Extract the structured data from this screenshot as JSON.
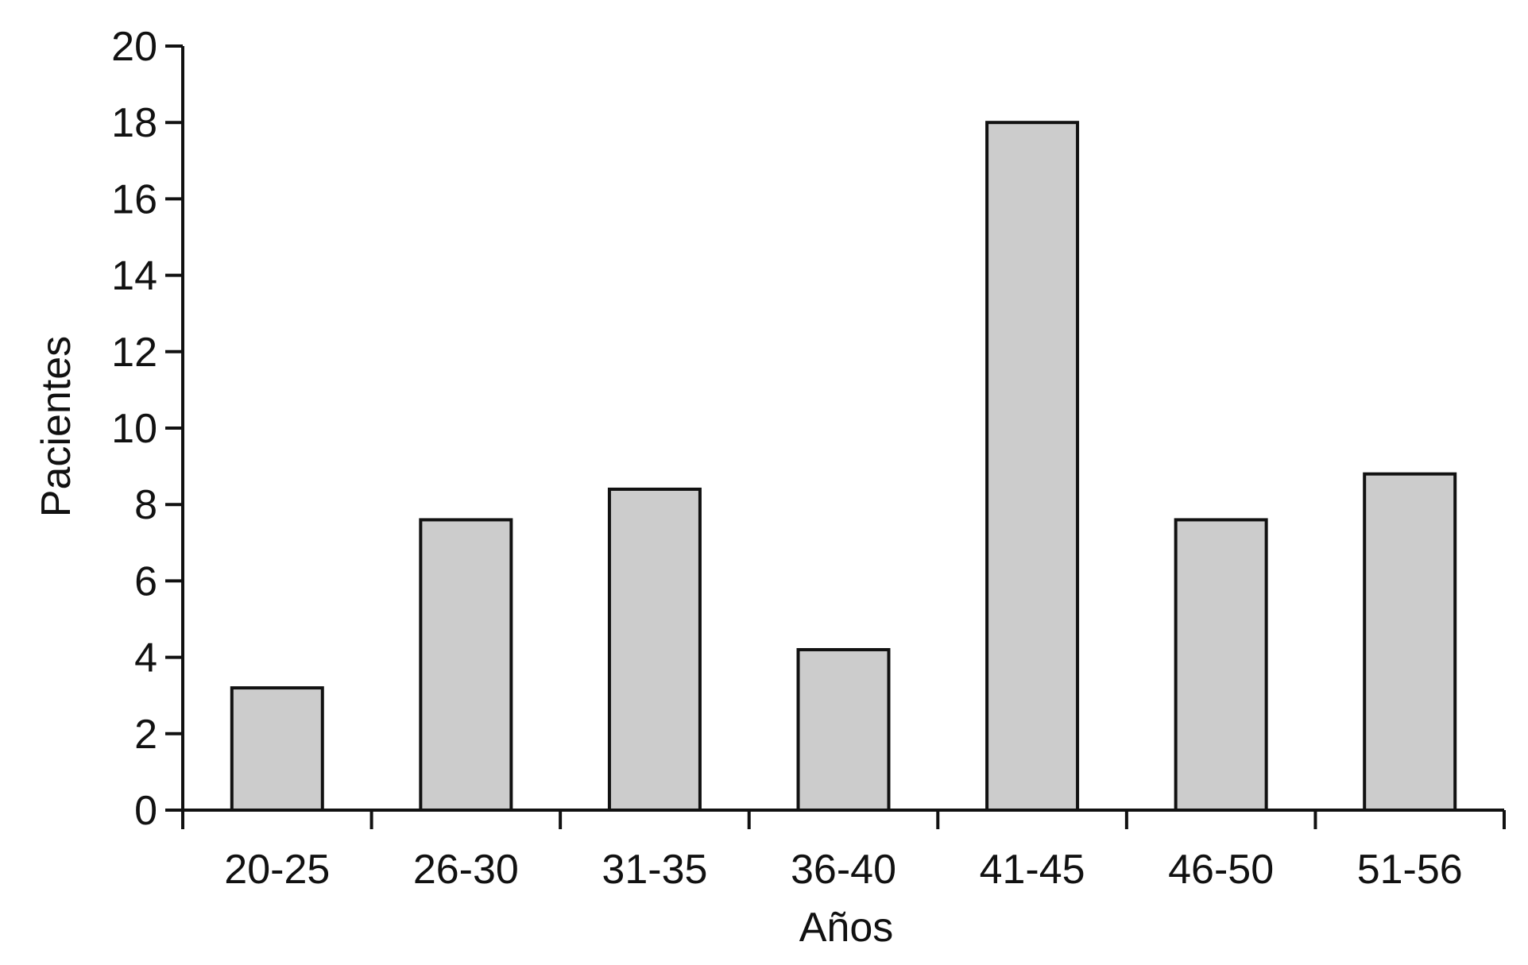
{
  "chart_data": {
    "type": "bar",
    "categories": [
      "20-25",
      "26-30",
      "31-35",
      "36-40",
      "41-45",
      "46-50",
      "51-56"
    ],
    "values": [
      3.2,
      7.6,
      8.4,
      4.2,
      18.0,
      7.6,
      8.8
    ],
    "xlabel": "Años",
    "ylabel": "Pacientes",
    "ylim": [
      0,
      20
    ],
    "yticks": [
      "0",
      "2",
      "4",
      "6",
      "8",
      "10",
      "12",
      "14",
      "16",
      "18",
      "20"
    ],
    "grid": false,
    "colors": {
      "bar_fill": "#cccccc",
      "bar_stroke": "#111111",
      "axis": "#111111"
    }
  }
}
